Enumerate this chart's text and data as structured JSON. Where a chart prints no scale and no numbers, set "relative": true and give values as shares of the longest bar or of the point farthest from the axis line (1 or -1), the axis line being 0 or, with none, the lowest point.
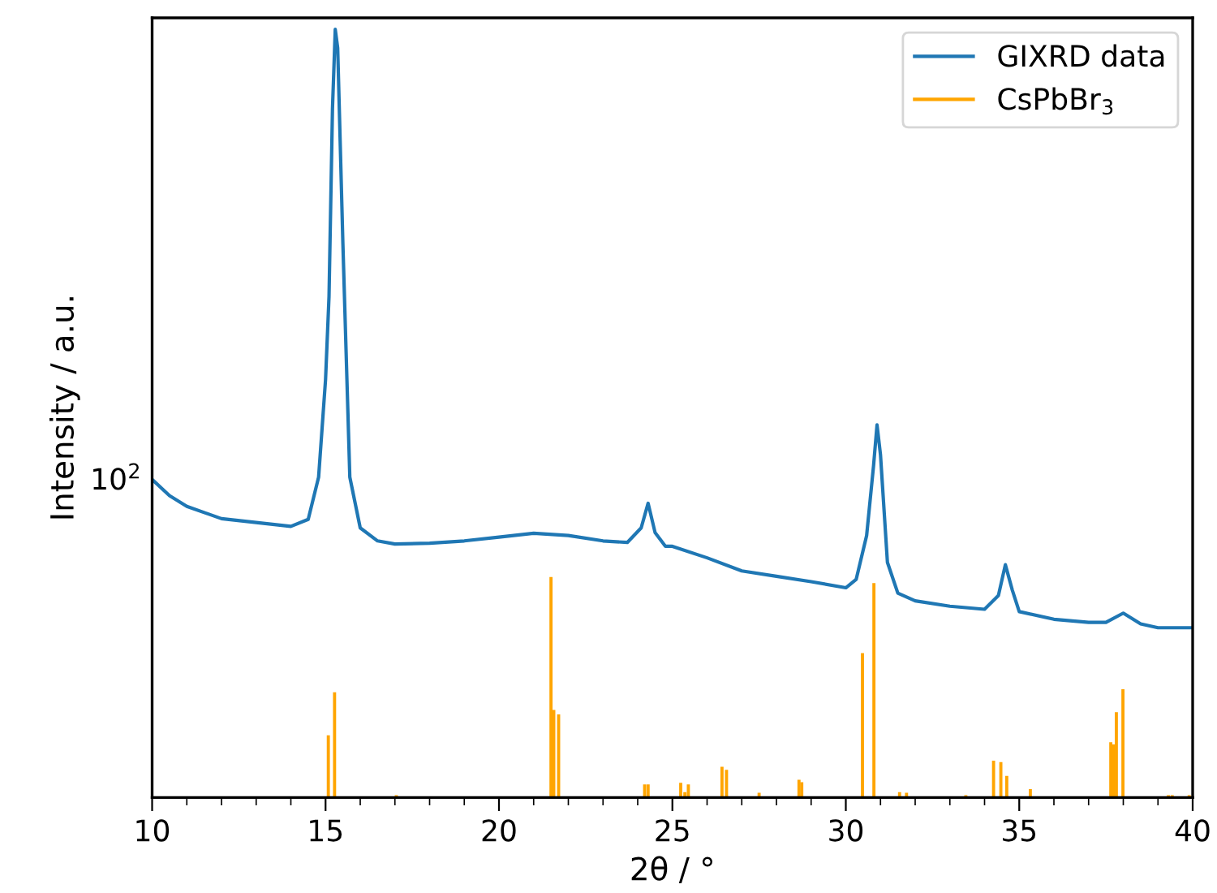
{
  "chart_data": {
    "type": "line",
    "xlabel": "2θ / °",
    "ylabel": "Intensity / a.u.",
    "legend": "top right",
    "relative": true,
    "annotations": [
      "10$^{2}$"
    ],
    "xlim": [
      10,
      40
    ],
    "xticks": [
      10,
      {
        "value": 11,
        "label": null
      },
      {
        "value": 12,
        "label": null
      },
      {
        "value": 13,
        "label": null
      },
      {
        "value": 14,
        "label": null
      },
      15,
      {
        "value": 16,
        "label": null
      },
      {
        "value": 17,
        "label": null
      },
      {
        "value": 18,
        "label": null
      },
      {
        "value": 19,
        "label": null
      },
      20,
      {
        "value": 21,
        "label": null
      },
      {
        "value": 22,
        "label": null
      },
      {
        "value": 23,
        "label": null
      },
      {
        "value": 24,
        "label": null
      },
      25,
      {
        "value": 26,
        "label": null
      },
      {
        "value": 27,
        "label": null
      },
      {
        "value": 28,
        "label": null
      },
      {
        "value": 29,
        "label": null
      },
      30,
      {
        "value": 31,
        "label": null
      },
      {
        "value": 32,
        "label": null
      },
      {
        "value": 33,
        "label": null
      },
      {
        "value": 34,
        "label": null
      },
      35,
      {
        "value": 36,
        "label": null
      },
      {
        "value": 37,
        "label": null
      },
      {
        "value": 38,
        "label": null
      },
      {
        "value": 39,
        "label": null
      },
      40
    ],
    "series": [
      {
        "name": "GIXRD data",
        "color": "#1f77b4",
        "x": [
          10,
          10.5,
          11,
          12,
          13,
          14,
          14.5,
          14.8,
          15,
          15.1,
          15.2,
          15.28,
          15.35,
          15.5,
          15.7,
          16,
          16.5,
          17,
          18,
          19,
          20,
          21,
          22,
          23,
          23.7,
          24.1,
          24.3,
          24.5,
          24.8,
          25,
          26,
          27,
          28,
          29,
          30,
          30.3,
          30.6,
          30.8,
          30.9,
          31,
          31.2,
          31.5,
          32,
          33,
          34,
          34.4,
          34.6,
          34.8,
          35,
          36,
          37,
          37.5,
          38,
          38.5,
          39,
          40
        ],
        "values": [
          0.414,
          0.393,
          0.379,
          0.363,
          0.358,
          0.353,
          0.362,
          0.417,
          0.544,
          0.652,
          0.897,
          1.0,
          0.976,
          0.721,
          0.417,
          0.351,
          0.334,
          0.33,
          0.331,
          0.334,
          0.339,
          0.344,
          0.341,
          0.334,
          0.332,
          0.351,
          0.383,
          0.345,
          0.327,
          0.327,
          0.312,
          0.295,
          0.288,
          0.281,
          0.273,
          0.284,
          0.341,
          0.432,
          0.485,
          0.446,
          0.306,
          0.266,
          0.256,
          0.249,
          0.245,
          0.263,
          0.303,
          0.27,
          0.242,
          0.232,
          0.228,
          0.228,
          0.24,
          0.226,
          0.221,
          0.221
        ]
      },
      {
        "name": "CsPbBr$_{3}$",
        "type": "bar",
        "color": "#ffa500",
        "x": [
          15.08,
          15.26,
          17.04,
          21.5,
          21.58,
          21.72,
          24.2,
          24.3,
          25.24,
          25.36,
          25.46,
          26.43,
          26.56,
          27.5,
          28.65,
          28.73,
          30.48,
          30.81,
          31.55,
          31.75,
          33.46,
          33.72,
          34.26,
          34.47,
          34.64,
          35.32,
          35.5,
          37.64,
          37.72,
          37.8,
          37.99,
          39.3,
          39.41,
          39.6,
          39.9
        ],
        "values": [
          0.081,
          0.137,
          0.003,
          0.287,
          0.114,
          0.108,
          0.017,
          0.017,
          0.019,
          0.007,
          0.017,
          0.04,
          0.036,
          0.006,
          0.023,
          0.02,
          0.188,
          0.279,
          0.007,
          0.006,
          0.003,
          null,
          0.048,
          0.046,
          0.028,
          0.011,
          null,
          0.072,
          0.069,
          0.111,
          0.141,
          0.003,
          0.003,
          0.001,
          0.003
        ]
      }
    ]
  }
}
